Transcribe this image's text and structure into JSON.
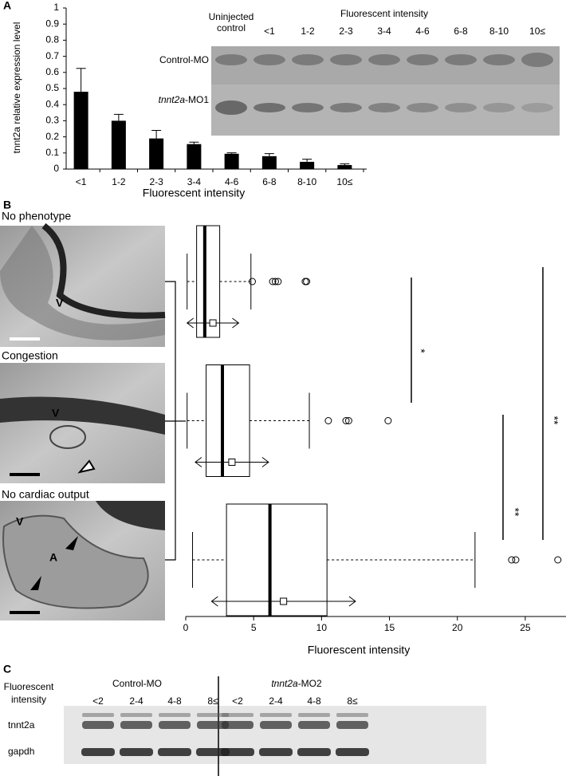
{
  "panels": {
    "a": "A",
    "b": "B",
    "c": "C"
  },
  "chart_data": [
    {
      "type": "bar",
      "xlabel": "Fluorescent intensity",
      "ylabel": "tnnt2a relative expression level",
      "categories": [
        "<1",
        "1-2",
        "2-3",
        "3-4",
        "4-6",
        "6-8",
        "8-10",
        "10≤"
      ],
      "values": [
        0.48,
        0.3,
        0.19,
        0.155,
        0.095,
        0.08,
        0.045,
        0.025
      ],
      "errors": [
        0.145,
        0.04,
        0.05,
        0.012,
        0.006,
        0.016,
        0.016,
        0.008
      ],
      "color": "#000000",
      "ylim": [
        0,
        1
      ],
      "yticks": [
        0,
        0.1,
        0.2,
        0.3,
        0.4,
        0.5,
        0.6,
        0.7,
        0.8,
        0.9,
        1
      ]
    },
    {
      "type": "box",
      "xlabel": "Fluorescent intensity",
      "categories": [
        "No phenotype",
        "Congestion",
        "No cardiac output"
      ],
      "min": [
        0.1,
        0.1,
        0.5
      ],
      "q1": [
        0.8,
        1.5,
        3.0
      ],
      "median": [
        1.4,
        2.7,
        6.2
      ],
      "q3": [
        2.5,
        4.7,
        10.4
      ],
      "max": [
        4.8,
        9.1,
        21.3
      ],
      "mean": [
        2.0,
        3.4,
        7.2
      ],
      "sd": [
        1.9,
        2.7,
        5.3
      ],
      "outliers": [
        [
          4.9,
          6.4,
          6.6,
          6.8,
          8.8,
          8.9
        ],
        [
          10.5,
          11.8,
          12.0,
          14.9
        ],
        [
          24.0,
          24.3,
          27.4
        ]
      ],
      "xlim": [
        0,
        28
      ],
      "xticks": [
        0,
        5,
        10,
        15,
        20,
        25
      ],
      "annotations": [
        "*",
        "**",
        "**"
      ]
    }
  ],
  "gel_a": {
    "title": "Fluorescent intensity",
    "lanes": [
      [
        "Uninjected",
        "control"
      ],
      [
        "<1"
      ],
      [
        "1-2"
      ],
      [
        "2-3"
      ],
      [
        "3-4"
      ],
      [
        "4-6"
      ],
      [
        "6-8"
      ],
      [
        "8-10"
      ],
      [
        "10≤"
      ]
    ],
    "rows": [
      {
        "gene": "",
        "suffix": "Control-MO"
      },
      {
        "gene": "tnnt2a",
        "suffix": "-MO1"
      }
    ]
  },
  "images_b": {
    "labels": [
      "V",
      "V",
      "V",
      "A"
    ]
  },
  "blot_c": {
    "axis_label": [
      "Fluorescent",
      "intensity"
    ],
    "groups": [
      {
        "gene": "",
        "suffix": "Control-MO",
        "lanes": [
          "<2",
          "2-4",
          "4-8",
          "8≤"
        ]
      },
      {
        "gene": "tnnt2a",
        "suffix": "-MO2",
        "lanes": [
          "<2",
          "2-4",
          "4-8",
          "8≤"
        ]
      }
    ],
    "rows": [
      "tnnt2a",
      "gapdh"
    ]
  }
}
